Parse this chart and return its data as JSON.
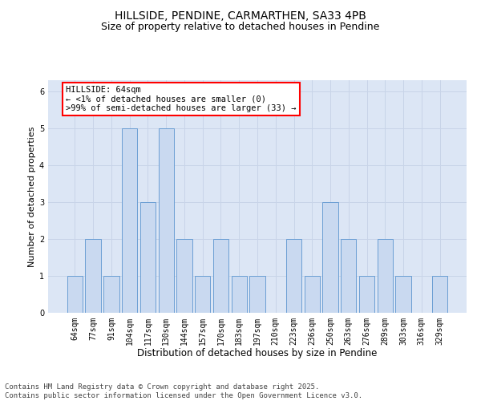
{
  "title1": "HILLSIDE, PENDINE, CARMARTHEN, SA33 4PB",
  "title2": "Size of property relative to detached houses in Pendine",
  "xlabel": "Distribution of detached houses by size in Pendine",
  "ylabel": "Number of detached properties",
  "categories": [
    "64sqm",
    "77sqm",
    "91sqm",
    "104sqm",
    "117sqm",
    "130sqm",
    "144sqm",
    "157sqm",
    "170sqm",
    "183sqm",
    "197sqm",
    "210sqm",
    "223sqm",
    "236sqm",
    "250sqm",
    "263sqm",
    "276sqm",
    "289sqm",
    "303sqm",
    "316sqm",
    "329sqm"
  ],
  "values": [
    1,
    2,
    1,
    5,
    3,
    5,
    2,
    1,
    2,
    1,
    1,
    0,
    2,
    1,
    3,
    2,
    1,
    2,
    1,
    0,
    1
  ],
  "bar_color": "#c9d9f0",
  "bar_edge_color": "#6b9fd4",
  "annotation_box_text": "HILLSIDE: 64sqm\n← <1% of detached houses are smaller (0)\n>99% of semi-detached houses are larger (33) →",
  "annotation_box_edge_color": "red",
  "annotation_box_face_color": "white",
  "ylim": [
    0,
    6.3
  ],
  "yticks": [
    0,
    1,
    2,
    3,
    4,
    5,
    6
  ],
  "grid_color": "#c8d4e8",
  "background_color": "#dce6f5",
  "footer_text": "Contains HM Land Registry data © Crown copyright and database right 2025.\nContains public sector information licensed under the Open Government Licence v3.0.",
  "title_fontsize": 10,
  "subtitle_fontsize": 9,
  "xlabel_fontsize": 8.5,
  "ylabel_fontsize": 8,
  "tick_fontsize": 7,
  "annotation_fontsize": 7.5,
  "footer_fontsize": 6.5
}
